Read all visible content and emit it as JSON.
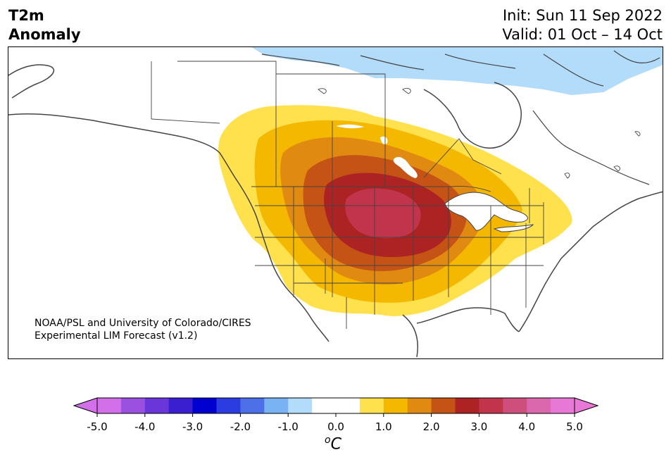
{
  "header": {
    "title_line1": "T2m",
    "title_line2": "Anomaly",
    "init": "Init: Sun 11 Sep 2022",
    "valid": "Valid: 01 Oct – 14 Oct"
  },
  "credit": {
    "line1": "NOAA/PSL and University of Colorado/CIRES",
    "line2": "Experimental LIM Forecast (v1.2)"
  },
  "colorbar": {
    "ticks": [
      "-5.0",
      "-4.0",
      "-3.0",
      "-2.0",
      "-1.0",
      "0.0",
      "1.0",
      "2.0",
      "3.0",
      "4.0",
      "5.0"
    ],
    "colors": [
      "#d36fe8",
      "#9b51e0",
      "#6a36d9",
      "#3a1fd1",
      "#0000cf",
      "#2b3de0",
      "#4d6fe8",
      "#79b3f3",
      "#b2dcfa",
      "#ffffff",
      "#ffffff",
      "#ffe14d",
      "#f5b800",
      "#e08a12",
      "#c65316",
      "#ad2323",
      "#c2334c",
      "#cf4f7c",
      "#db67ad",
      "#e878d6"
    ],
    "unit_base": "C",
    "unit_sup": "o"
  },
  "legend_colors": {
    "cold_1": "#b2dcfa",
    "warm_1": "#ffe14d",
    "warm_2": "#f5b800",
    "warm_3": "#e08a12",
    "warm_4": "#c65316",
    "warm_5": "#ad2323",
    "warm_6": "#c2334c",
    "warm_7": "#cf4f7c"
  }
}
